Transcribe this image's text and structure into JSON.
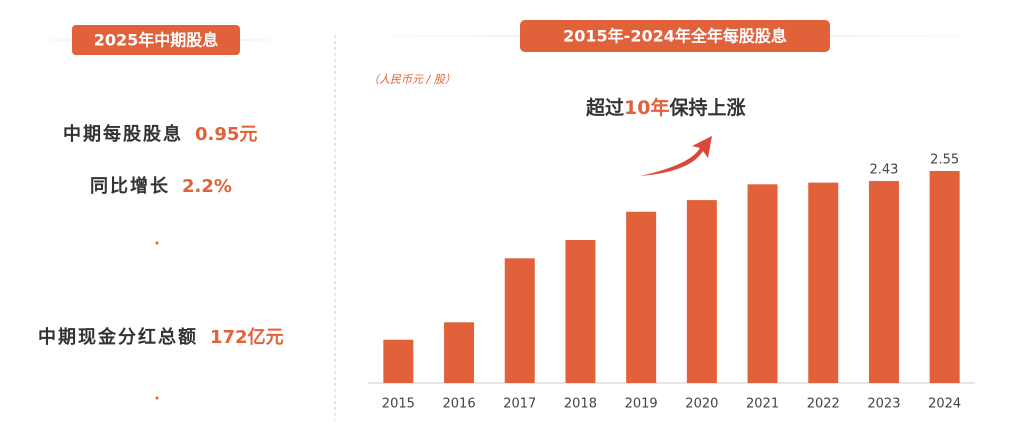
{
  "left_panel": {
    "title": "2025年中期股息",
    "items": [
      {
        "label": "中期每股股息",
        "value": "0.95元"
      },
      {
        "label": "同比增长",
        "value": "2.2%"
      },
      {
        "label": "中期现金分红总额",
        "value": "172亿元"
      }
    ]
  },
  "chart_data": {
    "type": "bar",
    "title": "2015年-2024年全年每股股息",
    "unit": "（人民币元 / 股）",
    "annotation": {
      "prefix": "超过",
      "highlight": "10年",
      "suffix": "保持上涨"
    },
    "categories": [
      "2015",
      "2016",
      "2017",
      "2018",
      "2019",
      "2020",
      "2021",
      "2022",
      "2023",
      "2024"
    ],
    "values": [
      0.52,
      0.73,
      1.5,
      1.72,
      2.06,
      2.2,
      2.39,
      2.41,
      2.43,
      2.55
    ],
    "value_labels": [
      null,
      null,
      null,
      null,
      null,
      null,
      null,
      null,
      "2.43",
      "2.55"
    ],
    "color": "#e0613a"
  }
}
